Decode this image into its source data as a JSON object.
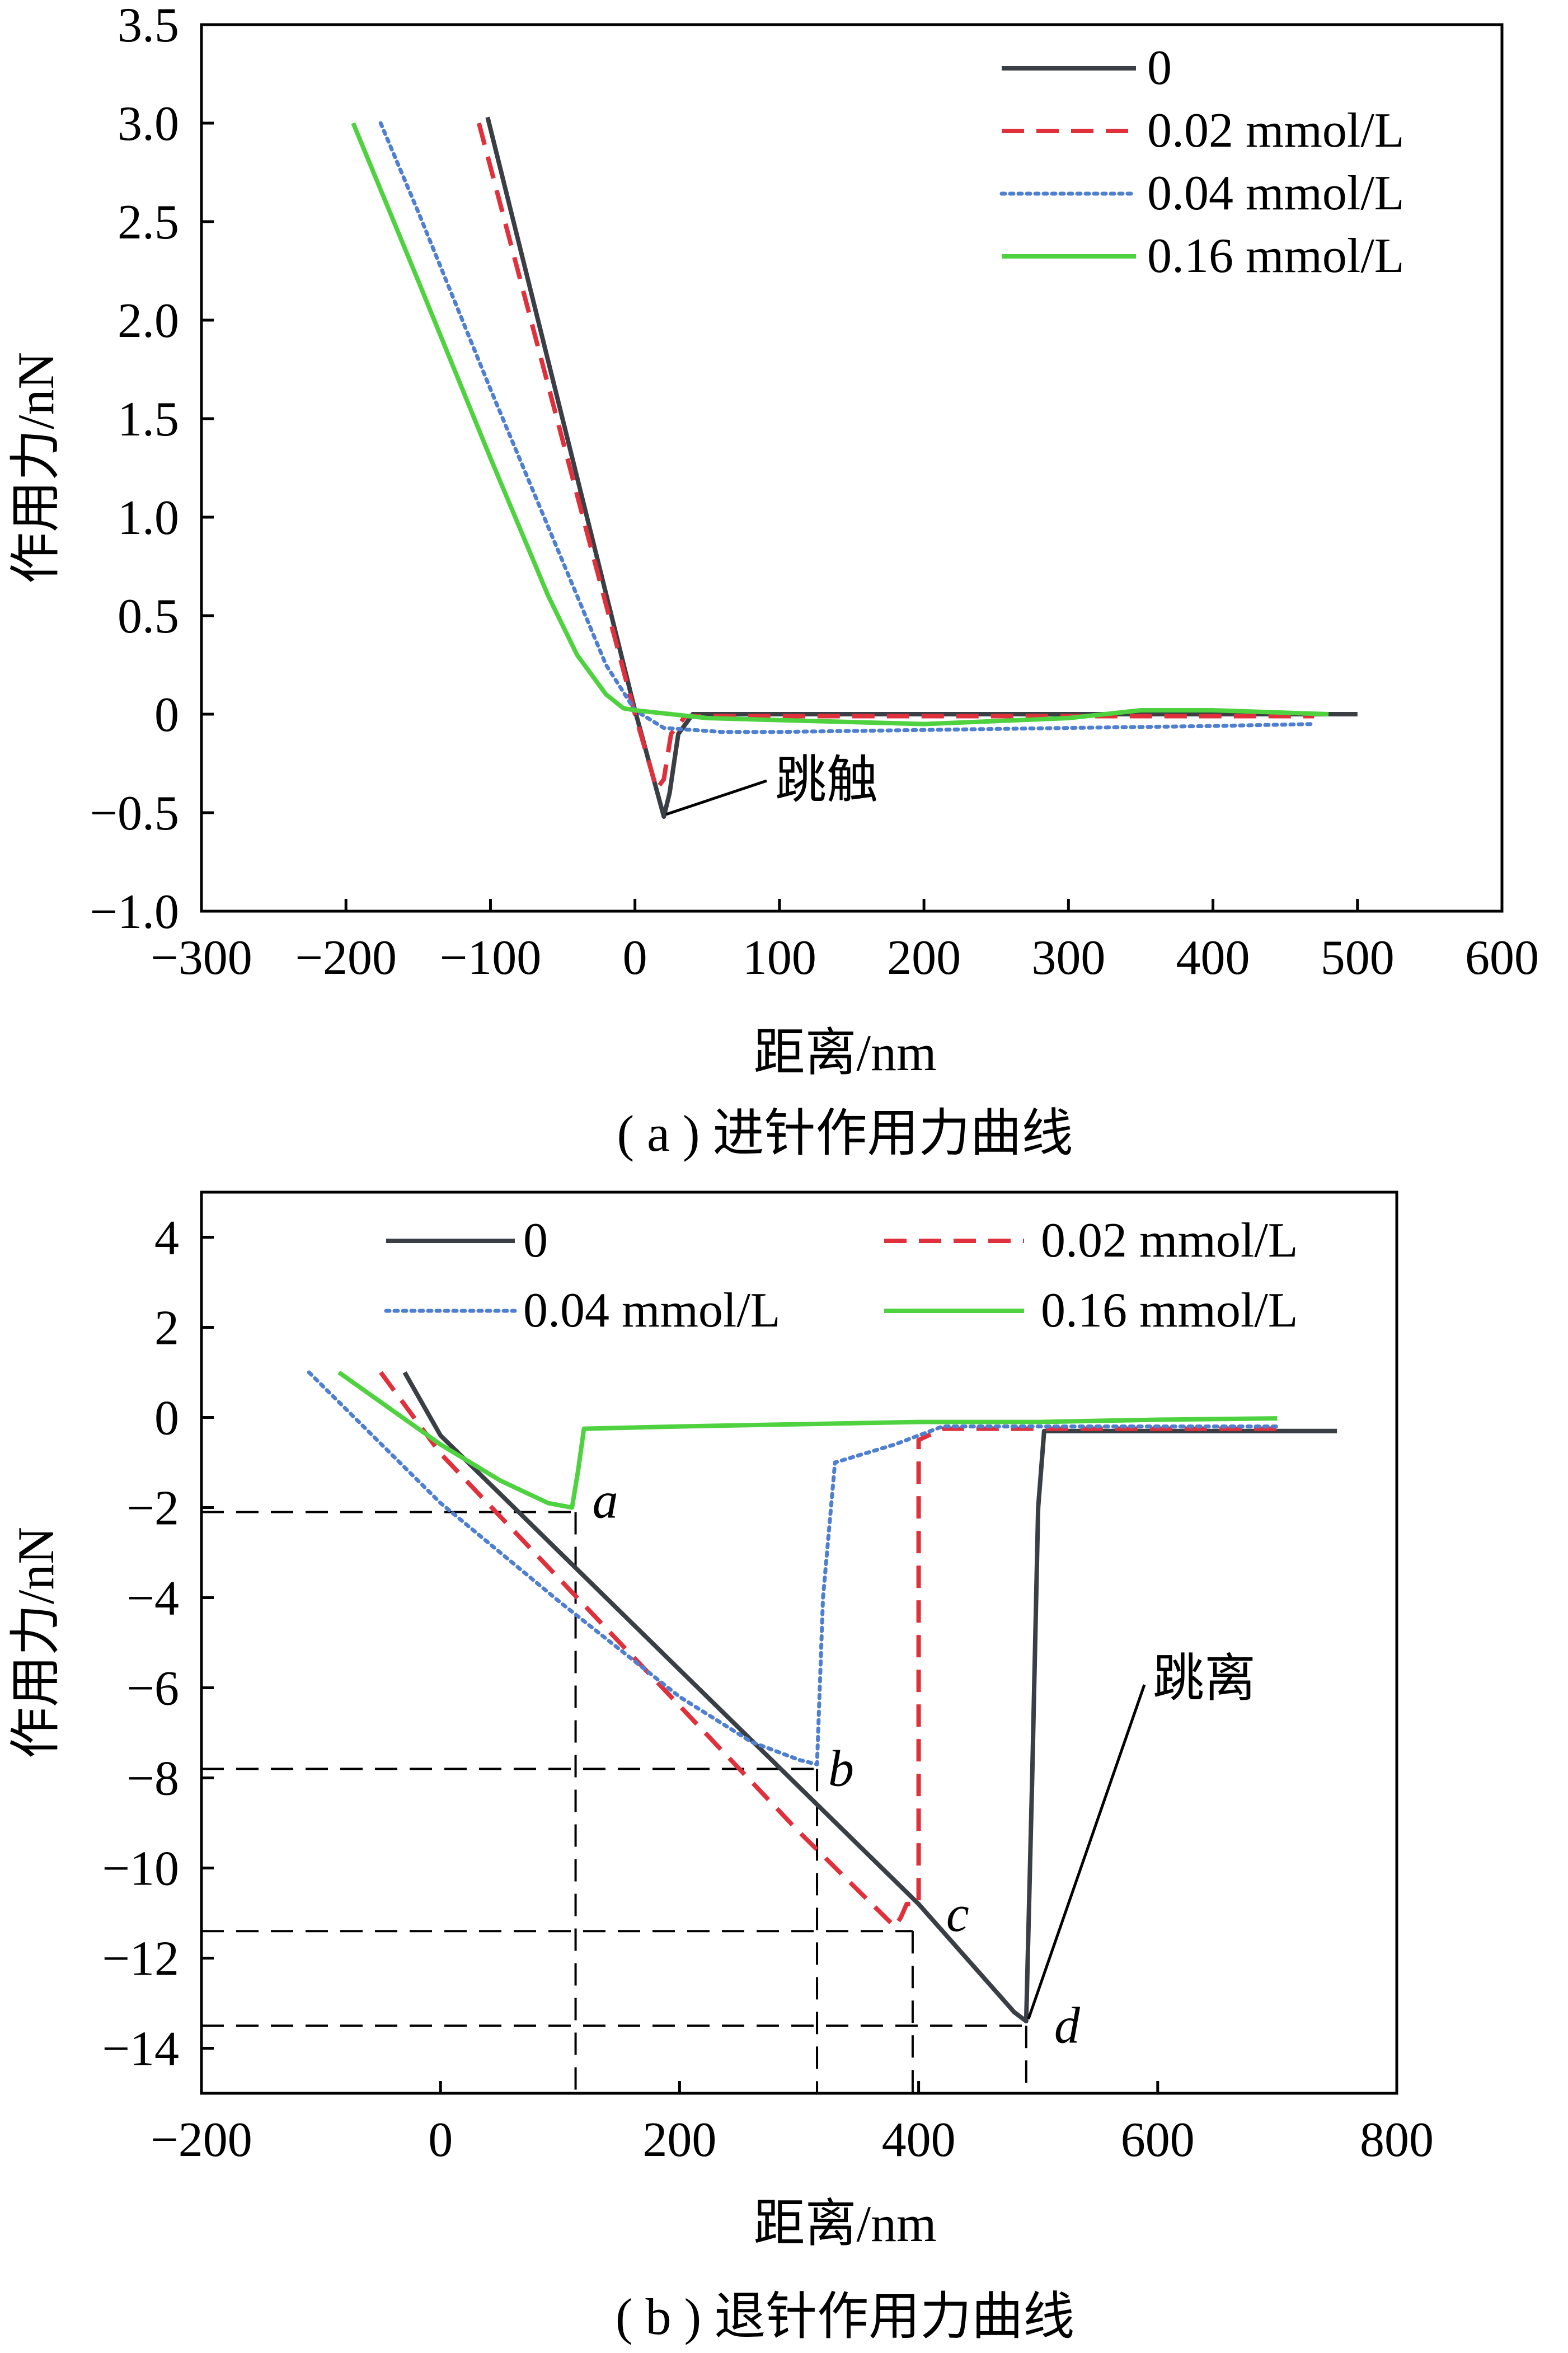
{
  "chart_data": [
    {
      "type": "line",
      "caption": "( a ) 进针作用力曲线",
      "xlabel": "距离/nm",
      "ylabel": "作用力/nN",
      "xlim": [
        -300,
        600
      ],
      "ylim": [
        -1.0,
        3.5
      ],
      "xticks": [
        -300,
        -200,
        -100,
        0,
        100,
        200,
        300,
        400,
        500,
        600
      ],
      "yticks": [
        -1.0,
        -0.5,
        0,
        0.5,
        1.0,
        1.5,
        2.0,
        2.5,
        3.0,
        3.5
      ],
      "xtick_labels": [
        "−300",
        "−200",
        "−100",
        "0",
        "100",
        "200",
        "300",
        "400",
        "500",
        "600"
      ],
      "ytick_labels": [
        "−1.0",
        "−0.5",
        "0",
        "0.5",
        "1.0",
        "1.5",
        "2.0",
        "2.5",
        "3.0",
        "3.5"
      ],
      "grid": false,
      "legend_position": "top-right",
      "series": [
        {
          "name": "0",
          "color": "#3a3f45",
          "dash": "solid",
          "x": [
            -102,
            0,
            20,
            24,
            30,
            40,
            100,
            200,
            300,
            400,
            500
          ],
          "y": [
            3.03,
            0.02,
            -0.52,
            -0.4,
            -0.1,
            0.0,
            0.0,
            0.0,
            0.0,
            0.0,
            0.0
          ]
        },
        {
          "name": "0.02 mmol/L",
          "color": "#e0303c",
          "dash": "dashed",
          "x": [
            -108,
            0,
            15,
            20,
            25,
            35,
            100,
            200,
            300,
            400,
            470
          ],
          "y": [
            3.0,
            0.0,
            -0.38,
            -0.33,
            -0.1,
            -0.01,
            -0.01,
            -0.01,
            -0.01,
            -0.01,
            -0.01
          ]
        },
        {
          "name": "0.04 mmol/L",
          "color": "#4f7fd0",
          "dash": "dotted",
          "x": [
            -176,
            -150,
            -100,
            -60,
            -40,
            -20,
            0,
            20,
            60,
            100,
            200,
            300,
            400,
            470
          ],
          "y": [
            3.0,
            2.55,
            1.65,
            0.95,
            0.6,
            0.25,
            0.02,
            -0.07,
            -0.09,
            -0.09,
            -0.08,
            -0.07,
            -0.06,
            -0.05
          ]
        },
        {
          "name": "0.16 mmol/L",
          "color": "#4fd240",
          "dash": "solid",
          "x": [
            -195,
            -150,
            -100,
            -60,
            -40,
            -20,
            -8,
            0,
            50,
            100,
            200,
            300,
            350,
            400,
            480
          ],
          "y": [
            3.0,
            2.2,
            1.3,
            0.6,
            0.3,
            0.1,
            0.03,
            0.02,
            -0.02,
            -0.03,
            -0.05,
            -0.02,
            0.02,
            0.02,
            0.0
          ]
        }
      ],
      "annotations": [
        {
          "text": "跳触",
          "x": 20,
          "y": -0.52
        }
      ]
    },
    {
      "type": "line",
      "caption": "( b ) 退针作用力曲线",
      "xlabel": "距离/nm",
      "ylabel": "作用力/nN",
      "xlim": [
        -200,
        800
      ],
      "ylim": [
        -15,
        5
      ],
      "xticks": [
        -200,
        0,
        200,
        400,
        600,
        800
      ],
      "yticks": [
        -14,
        -12,
        -10,
        -8,
        -6,
        -4,
        -2,
        0,
        2,
        4
      ],
      "xtick_labels": [
        "−200",
        "0",
        "200",
        "400",
        "600",
        "800"
      ],
      "ytick_labels": [
        "−14",
        "−12",
        "−10",
        "−8",
        "−6",
        "−4",
        "−2",
        "0",
        "2",
        "4"
      ],
      "grid": false,
      "legend_position": "top",
      "series": [
        {
          "name": "0",
          "color": "#3a3f45",
          "dash": "solid",
          "x": [
            -30,
            0,
            100,
            200,
            300,
            400,
            480,
            490,
            495,
            500,
            505,
            600,
            750
          ],
          "y": [
            1.0,
            -0.4,
            -3.0,
            -5.6,
            -8.2,
            -10.8,
            -13.2,
            -13.4,
            -8.0,
            -2.0,
            -0.3,
            -0.3,
            -0.3
          ]
        },
        {
          "name": "0.02 mmol/L",
          "color": "#e0303c",
          "dash": "dashed",
          "x": [
            -50,
            0,
            100,
            200,
            300,
            380,
            385,
            390,
            400,
            400,
            420,
            500,
            700
          ],
          "y": [
            1.0,
            -0.8,
            -3.6,
            -6.4,
            -9.2,
            -11.3,
            -11.1,
            -10.8,
            -10.8,
            -0.5,
            -0.25,
            -0.25,
            -0.25
          ]
        },
        {
          "name": "0.04 mmol/L",
          "color": "#4f7fd0",
          "dash": "dotted",
          "x": [
            -110,
            0,
            100,
            200,
            260,
            300,
            315,
            320,
            330,
            380,
            420,
            500,
            700
          ],
          "y": [
            1.0,
            -1.9,
            -4.1,
            -6.2,
            -7.2,
            -7.6,
            -7.7,
            -4.0,
            -1.0,
            -0.6,
            -0.2,
            -0.2,
            -0.2
          ]
        },
        {
          "name": "0.16 mmol/L",
          "color": "#4fd240",
          "dash": "solid",
          "x": [
            -85,
            0,
            50,
            90,
            110,
            115,
            120,
            200,
            300,
            400,
            500,
            600,
            700
          ],
          "y": [
            1.0,
            -0.6,
            -1.4,
            -1.9,
            -2.0,
            -1.2,
            -0.25,
            -0.2,
            -0.15,
            -0.1,
            -0.1,
            -0.05,
            -0.02
          ]
        }
      ],
      "point_labels": [
        {
          "text": "a",
          "x": 113,
          "y": -2.1
        },
        {
          "text": "b",
          "x": 315,
          "y": -7.8
        },
        {
          "text": "c",
          "x": 395,
          "y": -11.4
        },
        {
          "text": "d",
          "x": 490,
          "y": -13.5
        }
      ],
      "annotations": [
        {
          "text": "跳离",
          "x": 490,
          "y": -13.4
        }
      ]
    }
  ]
}
